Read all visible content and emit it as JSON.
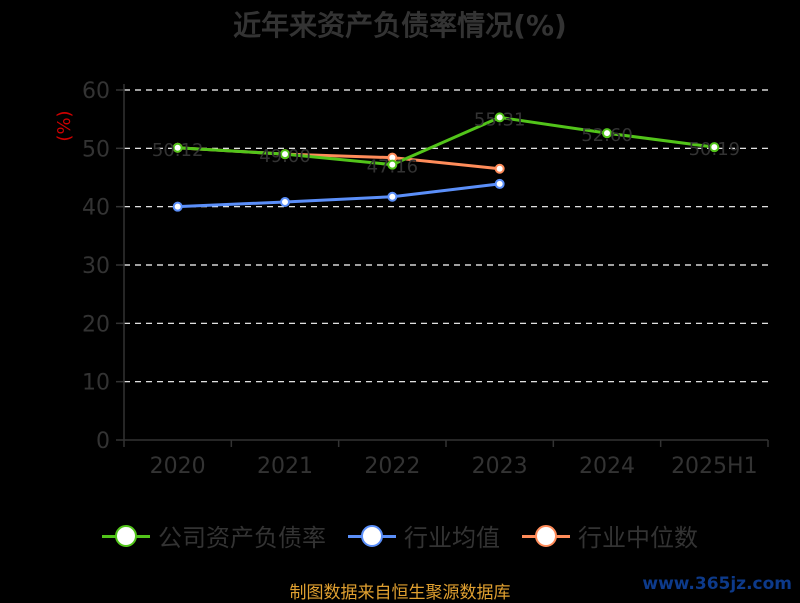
{
  "chart_data": {
    "type": "line",
    "title": "近年来资产负债率情况(%)",
    "ylabel": "(%)",
    "ylim": [
      0,
      60
    ],
    "yticks": [
      0,
      10,
      20,
      30,
      40,
      50,
      60
    ],
    "grid": true,
    "legend_position": "bottom",
    "categories": [
      "2020",
      "2021",
      "2022",
      "2023",
      "2024",
      "2025H1"
    ],
    "series": [
      {
        "name": "公司资产负债率",
        "color": "#52c41a",
        "values": [
          50.1,
          49.0,
          47.2,
          55.3,
          52.6,
          50.2
        ],
        "labels": [
          "50.12",
          "49.00",
          "47.16",
          "55.31",
          "52.60",
          "50.19"
        ]
      },
      {
        "name": "行业均值",
        "color": "#5b8ff9",
        "values": [
          40.0,
          40.8,
          41.7,
          43.9,
          null,
          null
        ]
      },
      {
        "name": "行业中位数",
        "color": "#ff8c5a",
        "values": [
          50.1,
          49.0,
          48.4,
          46.5,
          null,
          null
        ]
      }
    ]
  },
  "footer": {
    "source": "制图数据来自恒生聚源数据库",
    "watermark": "www.365jz.com"
  }
}
